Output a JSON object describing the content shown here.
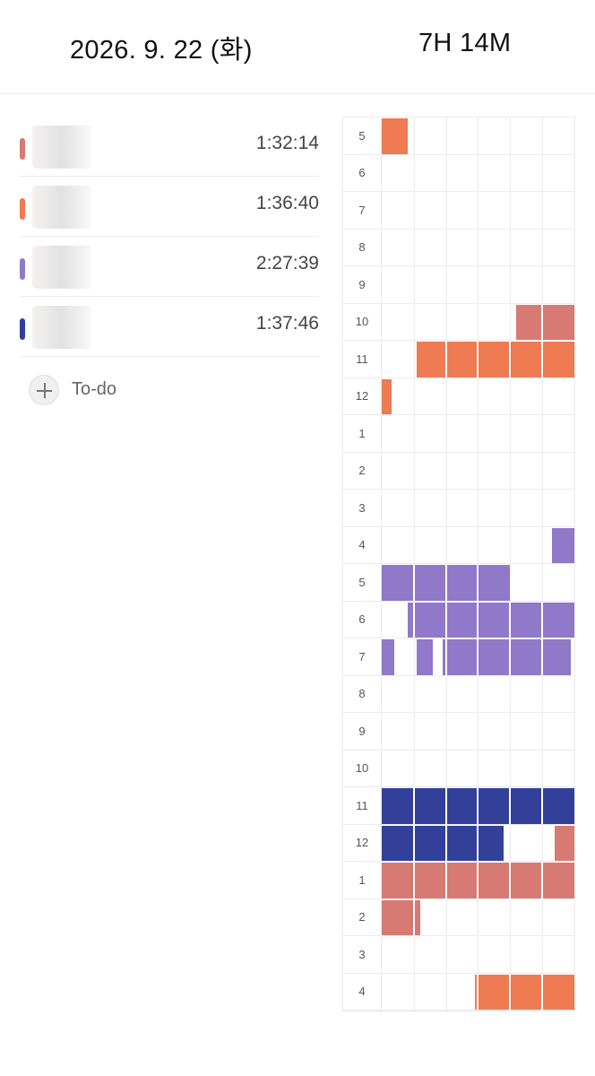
{
  "header": {
    "date": "2026. 9. 22 (화)",
    "total": "7H 14M"
  },
  "colors": {
    "rose": "#D77A74",
    "orange": "#EE7B52",
    "purple": "#9079C8",
    "navy": "#33409A"
  },
  "tasks": [
    {
      "color": "#D77A74",
      "time": "1:32:14"
    },
    {
      "color": "#EE7B52",
      "time": "1:36:40"
    },
    {
      "color": "#9079C8",
      "time": "2:27:39"
    },
    {
      "color": "#33409A",
      "time": "1:37:46"
    }
  ],
  "add_todo": {
    "label": "To-do",
    "icon": "plus-icon"
  },
  "timeline": {
    "hours": [
      "5",
      "6",
      "7",
      "8",
      "9",
      "10",
      "11",
      "12",
      "1",
      "2",
      "3",
      "4",
      "5",
      "6",
      "7",
      "8",
      "9",
      "10",
      "11",
      "12",
      "1",
      "2",
      "3",
      "4"
    ],
    "blocks": [
      {
        "hour": 0,
        "start": 0,
        "end": 8,
        "color": "orange"
      },
      {
        "hour": 5,
        "start": 42,
        "end": 60,
        "color": "rose"
      },
      {
        "hour": 6,
        "start": 11,
        "end": 60,
        "color": "orange"
      },
      {
        "hour": 7,
        "start": 0,
        "end": 3,
        "color": "orange"
      },
      {
        "hour": 11,
        "start": 53,
        "end": 60,
        "color": "purple"
      },
      {
        "hour": 12,
        "start": 0,
        "end": 40,
        "color": "purple"
      },
      {
        "hour": 13,
        "start": 8,
        "end": 60,
        "color": "purple"
      },
      {
        "hour": 14,
        "start": 0,
        "end": 4,
        "color": "purple"
      },
      {
        "hour": 14,
        "start": 11,
        "end": 16,
        "color": "purple"
      },
      {
        "hour": 14,
        "start": 19,
        "end": 59,
        "color": "purple"
      },
      {
        "hour": 18,
        "start": 0,
        "end": 60,
        "color": "navy"
      },
      {
        "hour": 19,
        "start": 0,
        "end": 38,
        "color": "navy"
      },
      {
        "hour": 19,
        "start": 54,
        "end": 60,
        "color": "rose"
      },
      {
        "hour": 20,
        "start": 0,
        "end": 60,
        "color": "rose"
      },
      {
        "hour": 21,
        "start": 0,
        "end": 12,
        "color": "rose"
      },
      {
        "hour": 23,
        "start": 29,
        "end": 60,
        "color": "orange"
      }
    ]
  }
}
